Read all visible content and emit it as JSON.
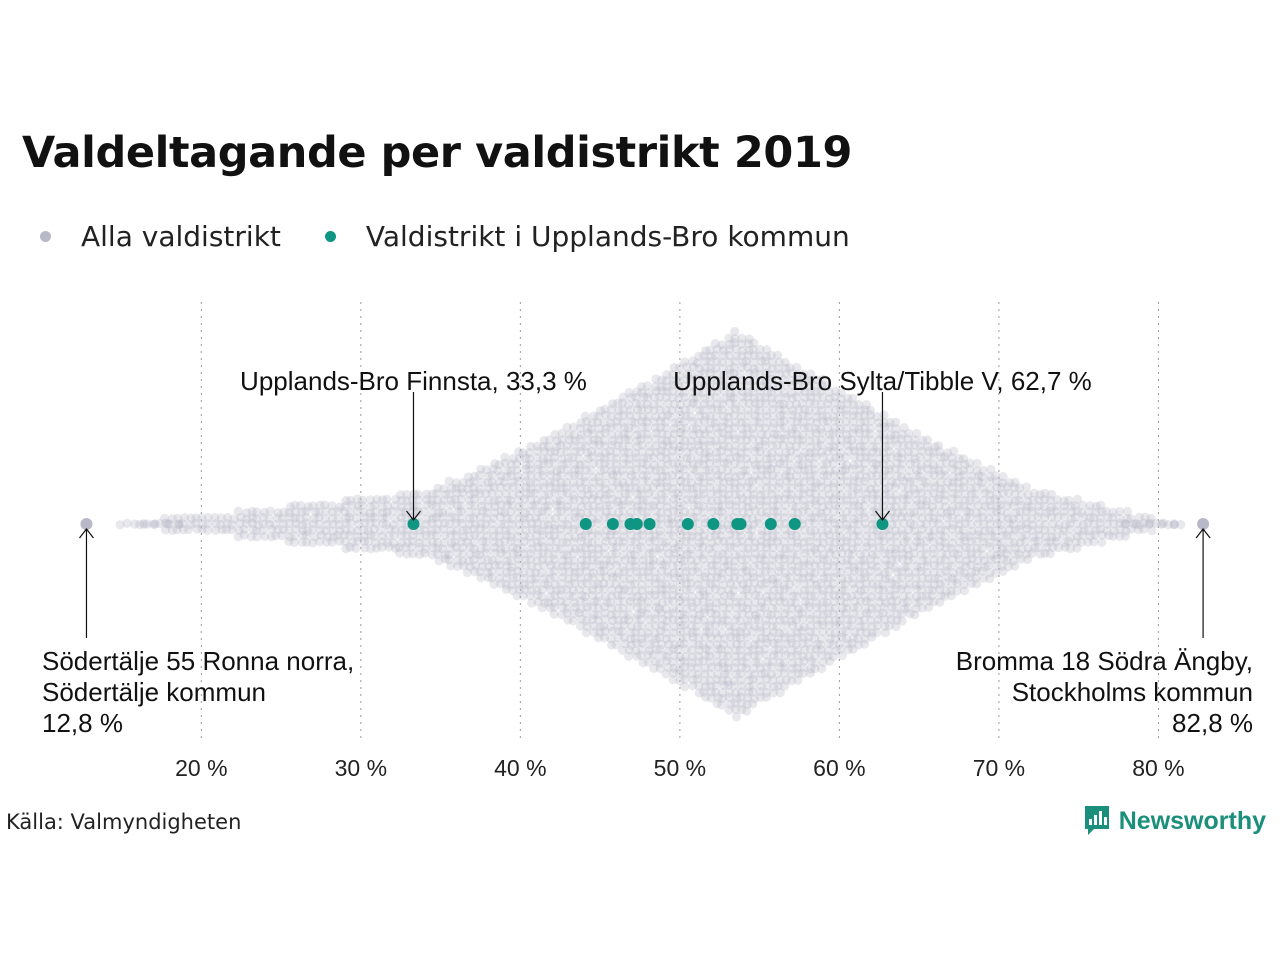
{
  "chart_data": {
    "type": "scatter",
    "title": "Valdeltagande per valdistrikt 2019",
    "x_ticks": [
      "20 %",
      "30 %",
      "40 %",
      "50 %",
      "60 %",
      "70 %",
      "80 %"
    ],
    "x_tick_values": [
      20,
      30,
      40,
      50,
      60,
      70,
      80
    ],
    "xlim": [
      10.2,
      84.8
    ],
    "grid": "vertical dotted",
    "legend_placement": "top-left",
    "series": [
      {
        "name": "Alla valdistrikt",
        "color": "#b9b8c8",
        "distribution_min": 12.8,
        "distribution_mode": 53.5,
        "distribution_max": 82.8,
        "highlighted_values": [
          12.8,
          82.8
        ]
      },
      {
        "name": "Valdistrikt i Upplands-Bro kommun",
        "color": "#0f9683",
        "values": [
          33.3,
          44.1,
          45.8,
          46.9,
          47.3,
          48.1,
          50.5,
          52.1,
          53.6,
          53.8,
          55.7,
          57.2,
          62.7
        ]
      }
    ],
    "annotations": [
      {
        "lines": [
          "Upplands-Bro Finnsta, 33,3 %"
        ],
        "value": 33.3,
        "position": "above"
      },
      {
        "lines": [
          "Upplands-Bro Sylta/Tibble V, 62,7 %"
        ],
        "value": 62.7,
        "position": "above"
      },
      {
        "lines": [
          "Södertälje 55 Ronna norra,",
          "Södertälje kommun",
          "12,8 %"
        ],
        "value": 12.8,
        "position": "below"
      },
      {
        "lines": [
          "Bromma 18 Södra Ängby,",
          "Stockholms kommun",
          "82,8 %"
        ],
        "value": 82.8,
        "position": "below"
      }
    ]
  },
  "legend": [
    {
      "label": "Alla valdistrikt",
      "color": "#b9b8c8"
    },
    {
      "label": "Valdistrikt i Upplands-Bro kommun",
      "color": "#0f9683"
    }
  ],
  "source": "Källa: Valmyndigheten",
  "brand": {
    "name": "Newsworthy",
    "color": "#1a8f7b",
    "icon": "newsworthy-logo-icon"
  }
}
